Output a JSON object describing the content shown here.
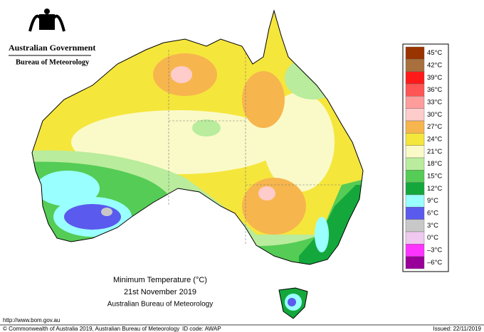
{
  "header": {
    "government": "Australian Government",
    "agency": "Bureau of Meteorology"
  },
  "map": {
    "title": "Minimum Temperature (°C)",
    "date": "21st November 2019",
    "source": "Australian Bureau of Meteorology"
  },
  "legend": [
    {
      "label": "45°C",
      "color": "#993300"
    },
    {
      "label": "42°C",
      "color": "#a8703c"
    },
    {
      "label": "39°C",
      "color": "#ff1a1a"
    },
    {
      "label": "36°C",
      "color": "#ff5555"
    },
    {
      "label": "33°C",
      "color": "#ff9c9c"
    },
    {
      "label": "30°C",
      "color": "#ffcccc"
    },
    {
      "label": "27°C",
      "color": "#f7b54e"
    },
    {
      "label": "24°C",
      "color": "#f5e63c"
    },
    {
      "label": "21°C",
      "color": "#fafac8"
    },
    {
      "label": "18°C",
      "color": "#b9ec9c"
    },
    {
      "label": "15°C",
      "color": "#55cc55"
    },
    {
      "label": "12°C",
      "color": "#14a83c"
    },
    {
      "label": "9°C",
      "color": "#99ffff"
    },
    {
      "label": "6°C",
      "color": "#5a5aee"
    },
    {
      "label": "3°C",
      "color": "#c8c8c8"
    },
    {
      "label": "0°C",
      "color": "#f0c8f0"
    },
    {
      "label": "–3°C",
      "color": "#ff33ff"
    },
    {
      "label": "–6°C",
      "color": "#990099"
    }
  ],
  "footer": {
    "url": "http://www.bom.gov.au",
    "copyright": "© Commonwealth of Australia 2019, Australian Bureau of Meteorology",
    "id_code": "ID code: AWAP",
    "issued": "Issued: 22/11/2019"
  }
}
